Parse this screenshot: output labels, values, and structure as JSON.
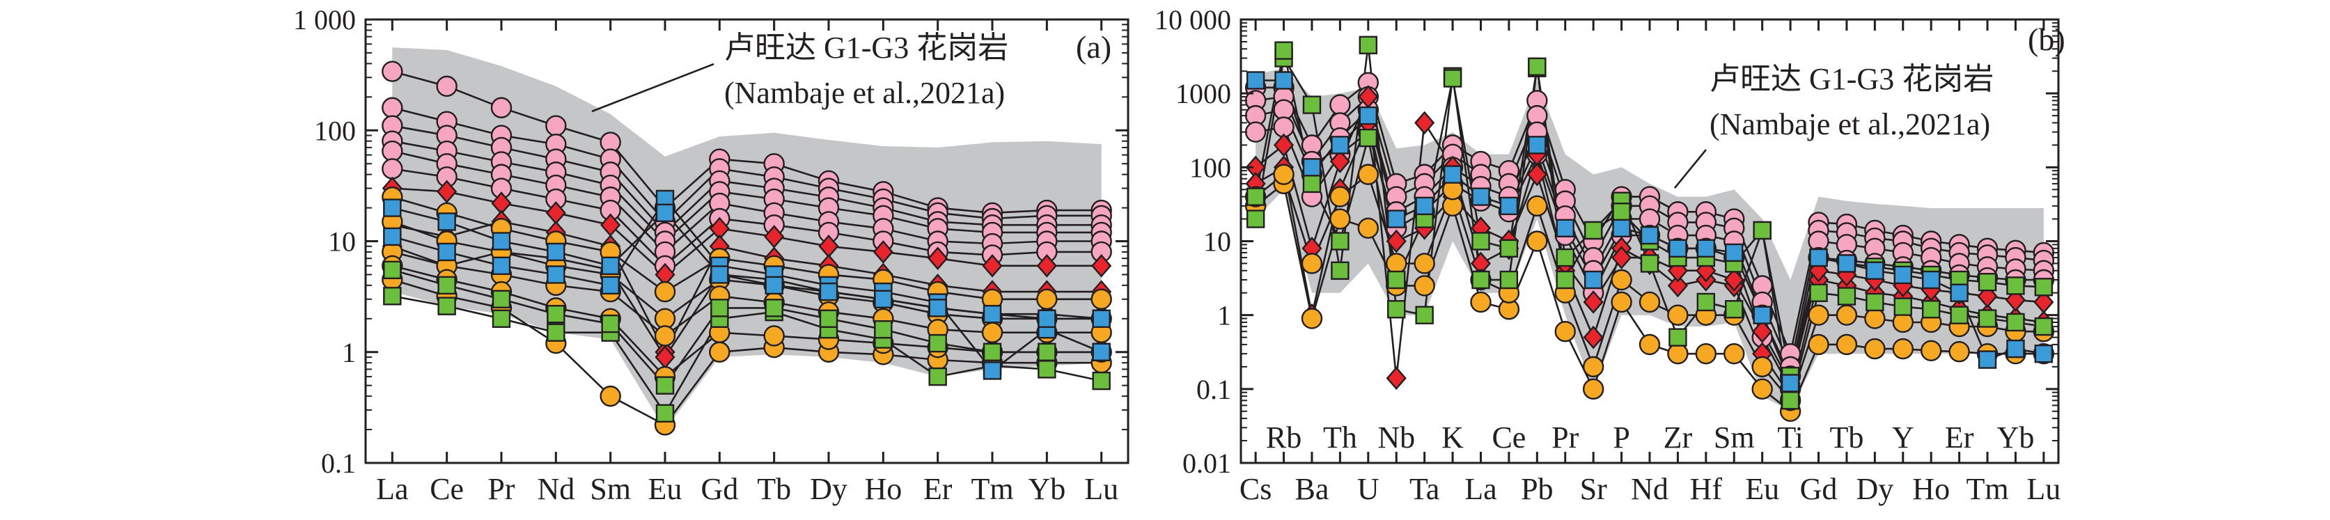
{
  "colors": {
    "field": "#c5c6c8",
    "line": "#231f20",
    "orange": "#f7a823",
    "green": "#6cbf3c",
    "blue": "#3b9ad8",
    "red": "#e8242d",
    "pink": "#f6a6c1"
  },
  "chart_data": [
    {
      "type": "line",
      "panel": "(a)",
      "log_scale": true,
      "ylim": [
        0.1,
        1000
      ],
      "ytick_labels": [
        "0.1",
        "1",
        "10",
        "100",
        "1 000"
      ],
      "categories": [
        "La",
        "Ce",
        "Pr",
        "Nd",
        "Sm",
        "Eu",
        "Gd",
        "Tb",
        "Dy",
        "Ho",
        "Er",
        "Tm",
        "Yb",
        "Lu"
      ],
      "annotation": {
        "line1": "卢旺达 G1-G3 花岗岩",
        "line2": "(Nambaje et al.,2021a)"
      },
      "field_upper": [
        560,
        530,
        380,
        250,
        140,
        58,
        88,
        95,
        82,
        72,
        70,
        78,
        80,
        75
      ],
      "field_lower": [
        3.5,
        2.6,
        2.2,
        1.5,
        1.3,
        0.2,
        0.9,
        0.95,
        0.9,
        0.8,
        0.6,
        0.7,
        0.75,
        0.8
      ],
      "series": [
        {
          "marker": "circle",
          "color": "pink",
          "values": [
            340,
            250,
            160,
            110,
            78,
            20,
            55,
            50,
            35,
            28,
            20,
            18,
            19,
            19
          ]
        },
        {
          "marker": "circle",
          "color": "pink",
          "values": [
            160,
            120,
            90,
            75,
            55,
            15,
            45,
            38,
            30,
            24,
            18,
            16,
            17,
            17
          ]
        },
        {
          "marker": "circle",
          "color": "pink",
          "values": [
            110,
            90,
            70,
            55,
            42,
            12,
            35,
            30,
            25,
            20,
            15,
            14,
            14,
            14
          ]
        },
        {
          "marker": "circle",
          "color": "pink",
          "values": [
            80,
            65,
            52,
            42,
            32,
            10,
            28,
            24,
            20,
            17,
            13,
            12,
            12,
            12
          ]
        },
        {
          "marker": "circle",
          "color": "pink",
          "values": [
            65,
            50,
            40,
            32,
            25,
            8,
            22,
            18,
            15,
            13,
            10,
            9.5,
            10,
            10
          ]
        },
        {
          "marker": "circle",
          "color": "pink",
          "values": [
            45,
            38,
            30,
            24,
            19,
            6,
            16,
            14,
            12,
            10,
            8,
            7.5,
            8,
            8
          ]
        },
        {
          "marker": "diamond",
          "color": "red",
          "values": [
            30,
            28,
            22,
            18,
            14,
            5,
            13,
            11,
            9,
            8,
            7,
            6,
            6,
            6
          ]
        },
        {
          "marker": "diamond",
          "color": "red",
          "values": [
            14,
            11,
            15,
            12,
            9,
            1.0,
            9,
            7,
            6,
            5,
            4,
            3.5,
            3.5,
            3.5
          ]
        },
        {
          "marker": "diamond",
          "color": "red",
          "values": [
            9,
            6,
            8,
            7,
            5.5,
            0.9,
            5,
            4.5,
            3.5,
            3,
            2.5,
            2.2,
            2.2,
            2.0
          ]
        },
        {
          "marker": "circle",
          "color": "orange",
          "values": [
            25,
            18,
            13,
            10,
            8,
            3.5,
            7,
            6,
            5,
            4.5,
            3.5,
            3,
            3,
            3
          ]
        },
        {
          "marker": "circle",
          "color": "orange",
          "values": [
            15,
            10,
            8,
            6,
            5,
            2.0,
            4.5,
            4,
            3.2,
            2.8,
            2.2,
            2,
            2,
            2
          ]
        },
        {
          "marker": "circle",
          "color": "orange",
          "values": [
            8,
            6,
            5,
            4,
            3.5,
            1.4,
            3.2,
            2.8,
            2.3,
            2,
            1.6,
            1.5,
            1.5,
            1.5
          ]
        },
        {
          "marker": "circle",
          "color": "orange",
          "values": [
            4.5,
            3.2,
            2.5,
            1.2,
            0.4,
            0.22,
            1.0,
            1.1,
            1.0,
            0.95,
            0.85,
            0.8,
            0.8,
            0.8
          ]
        },
        {
          "marker": "circle",
          "color": "orange",
          "values": [
            6,
            4.5,
            3.5,
            2.5,
            2.0,
            0.6,
            1.5,
            1.4,
            1.3,
            1.2,
            1.1,
            1.0,
            1.0,
            1.0
          ]
        },
        {
          "marker": "square",
          "color": "green",
          "values": [
            3.2,
            2.6,
            2.0,
            1.5,
            1.5,
            0.28,
            2.0,
            2.3,
            1.6,
            1.3,
            0.6,
            0.75,
            0.7,
            0.55
          ]
        },
        {
          "marker": "square",
          "color": "green",
          "values": [
            5.5,
            4,
            3,
            2.2,
            1.8,
            0.5,
            2.5,
            2.5,
            2.0,
            1.6,
            1.2,
            1.0,
            1.0,
            1.0
          ]
        },
        {
          "marker": "square",
          "color": "blue",
          "values": [
            11,
            8,
            6,
            5,
            4,
            24,
            6,
            5,
            4,
            3.5,
            2.8,
            0.68,
            1.6,
            1.0
          ]
        },
        {
          "marker": "square",
          "color": "blue",
          "values": [
            20,
            15,
            10,
            8,
            6,
            18,
            5,
            4,
            3.5,
            3,
            2.5,
            2.2,
            2.0,
            2.0
          ]
        }
      ]
    },
    {
      "type": "line",
      "panel": "(b)",
      "log_scale": true,
      "ylim": [
        0.01,
        10000
      ],
      "ytick_labels": [
        "0.01",
        "0.1",
        "1",
        "10",
        "100",
        "1000",
        "10 000"
      ],
      "categories": [
        "Cs",
        "Rb",
        "Ba",
        "Th",
        "U",
        "Nb",
        "Ta",
        "K",
        "La",
        "Ce",
        "Pb",
        "Pr",
        "Sr",
        "P",
        "Nd",
        "Zr",
        "Hf",
        "Sm",
        "Eu",
        "Ti",
        "Gd",
        "Tb",
        "Dy",
        "Y",
        "Ho",
        "Er",
        "Tm",
        "Yb",
        "Lu"
      ],
      "annotation": {
        "line1": "卢旺达 G1-G3 花岗岩",
        "line2": "(Nambaje et al.,2021a)"
      },
      "field_upper": [
        1800,
        2200,
        900,
        1000,
        1200,
        180,
        200,
        300,
        150,
        150,
        1500,
        150,
        80,
        100,
        60,
        40,
        40,
        50,
        20,
        3,
        40,
        35,
        32,
        30,
        28,
        28,
        28,
        28,
        28
      ],
      "field_lower": [
        20,
        50,
        2,
        2,
        5,
        1,
        1,
        10,
        2,
        2,
        20,
        1,
        0.1,
        1,
        1,
        0.7,
        0.7,
        0.8,
        0.08,
        0.05,
        0.3,
        0.3,
        0.3,
        0.3,
        0.3,
        0.3,
        0.3,
        0.3,
        0.3
      ],
      "series": [
        {
          "marker": "circle",
          "color": "pink",
          "values": [
            1200,
            1200,
            200,
            700,
            1400,
            60,
            80,
            200,
            120,
            90,
            800,
            50,
            10,
            40,
            40,
            25,
            25,
            20,
            2.5,
            0.3,
            18,
            17,
            14,
            12,
            10,
            9,
            8,
            7.5,
            7
          ]
        },
        {
          "marker": "circle",
          "color": "pink",
          "values": [
            800,
            900,
            120,
            400,
            900,
            40,
            60,
            150,
            80,
            60,
            500,
            35,
            6,
            30,
            30,
            18,
            18,
            15,
            1.5,
            0.2,
            14,
            13,
            11,
            10,
            8,
            7,
            6.5,
            6,
            5.5
          ]
        },
        {
          "marker": "circle",
          "color": "pink",
          "values": [
            500,
            600,
            80,
            250,
            600,
            25,
            40,
            100,
            55,
            40,
            300,
            22,
            4,
            20,
            20,
            12,
            12,
            10,
            1.0,
            0.15,
            10,
            9,
            8,
            7,
            6,
            5,
            4.5,
            4.2,
            4
          ]
        },
        {
          "marker": "circle",
          "color": "pink",
          "values": [
            300,
            350,
            40,
            150,
            300,
            15,
            25,
            60,
            35,
            25,
            150,
            12,
            2,
            12,
            12,
            8,
            8,
            6,
            0.5,
            0.1,
            6,
            5.5,
            5,
            4.5,
            4,
            3.5,
            3.2,
            3,
            3
          ]
        },
        {
          "marker": "diamond",
          "color": "red",
          "values": [
            100,
            200,
            8,
            120,
            900,
            0.14,
            400,
            100,
            5,
            8,
            150,
            4,
            0.5,
            8,
            5,
            2.5,
            3,
            2.5,
            0.3,
            0.08,
            3,
            2.5,
            2,
            1.8,
            1.5,
            1.2,
            1.0,
            0.9,
            0.8
          ]
        },
        {
          "marker": "diamond",
          "color": "red",
          "values": [
            60,
            100,
            1.0,
            50,
            400,
            10,
            15,
            40,
            15,
            10,
            80,
            5,
            1.5,
            6,
            6,
            4,
            4,
            3,
            0.6,
            0.12,
            4,
            3.5,
            3,
            2.5,
            2.2,
            2,
            1.8,
            1.6,
            1.5
          ]
        },
        {
          "marker": "circle",
          "color": "orange",
          "values": [
            30,
            60,
            0.9,
            20,
            15,
            2.5,
            2.5,
            30,
            1.5,
            1.2,
            10,
            0.6,
            0.1,
            1.5,
            0.4,
            0.3,
            0.3,
            0.3,
            0.1,
            0.05,
            0.4,
            0.4,
            0.35,
            0.35,
            0.33,
            0.32,
            0.3,
            0.3,
            0.3
          ]
        },
        {
          "marker": "circle",
          "color": "orange",
          "values": [
            40,
            80,
            5,
            40,
            80,
            5,
            5,
            50,
            3,
            2,
            30,
            2,
            0.2,
            3,
            1.5,
            1,
            1,
            1,
            0.2,
            0.07,
            1,
            1,
            0.9,
            0.8,
            0.8,
            0.7,
            0.7,
            0.6,
            0.6
          ]
        },
        {
          "marker": "square",
          "color": "green",
          "values": [
            20,
            3000,
            700,
            4,
            4500,
            1.2,
            1.0,
            1700,
            3,
            3,
            2200,
            3,
            14,
            35,
            5,
            0.5,
            1.5,
            1.2,
            14,
            0.07,
            2,
            1.8,
            1.5,
            1.3,
            1.2,
            1.0,
            0.9,
            0.8,
            0.7
          ]
        },
        {
          "marker": "square",
          "color": "green",
          "values": [
            40,
            3800,
            60,
            10,
            250,
            3,
            20,
            1600,
            10,
            8,
            2300,
            6,
            14,
            25,
            10,
            6,
            6,
            5,
            14,
            0.15,
            6,
            5,
            4.5,
            4,
            3.5,
            3,
            2.8,
            2.5,
            2.4
          ]
        },
        {
          "marker": "square",
          "color": "blue",
          "values": [
            1500,
            1500,
            100,
            200,
            500,
            20,
            30,
            80,
            40,
            30,
            200,
            15,
            3,
            15,
            12,
            8,
            8,
            7,
            1.0,
            0.12,
            6,
            5,
            4,
            3.5,
            3,
            2,
            0.25,
            0.35,
            0.3
          ]
        }
      ]
    }
  ]
}
